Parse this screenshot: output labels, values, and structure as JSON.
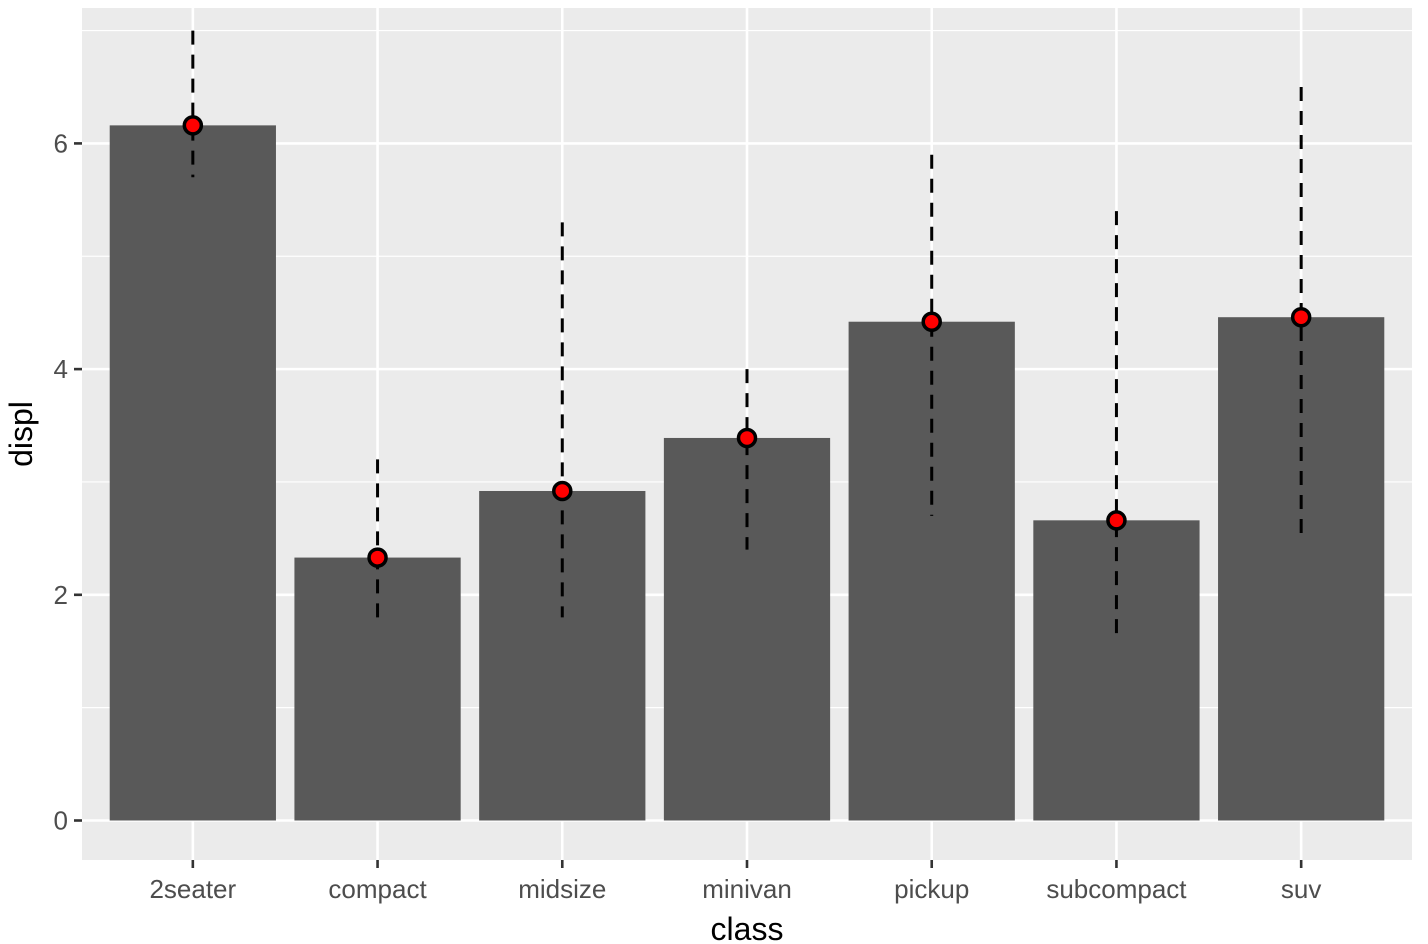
{
  "chart_data": {
    "type": "bar",
    "title": "",
    "xlabel": "class",
    "ylabel": "displ",
    "categories": [
      "2seater",
      "compact",
      "midsize",
      "minivan",
      "pickup",
      "subcompact",
      "suv"
    ],
    "series": [
      {
        "values": [
          6.16,
          2.33,
          2.92,
          3.39,
          4.42,
          2.66,
          4.46
        ]
      }
    ],
    "range_min": [
      5.7,
      1.8,
      1.8,
      2.4,
      2.7,
      1.6,
      2.5
    ],
    "range_max": [
      7.0,
      3.2,
      5.3,
      4.0,
      5.9,
      5.4,
      6.5
    ],
    "ylim": [
      -0.35,
      7.2
    ],
    "yticks": [
      0,
      2,
      4,
      6
    ],
    "grid": true,
    "legend": "none",
    "colors": {
      "panel": "#ebebeb",
      "grid": "#ffffff",
      "bar": "#595959",
      "point_fill": "#ff0000",
      "point_stroke": "#000000",
      "range_line": "#000000"
    }
  }
}
